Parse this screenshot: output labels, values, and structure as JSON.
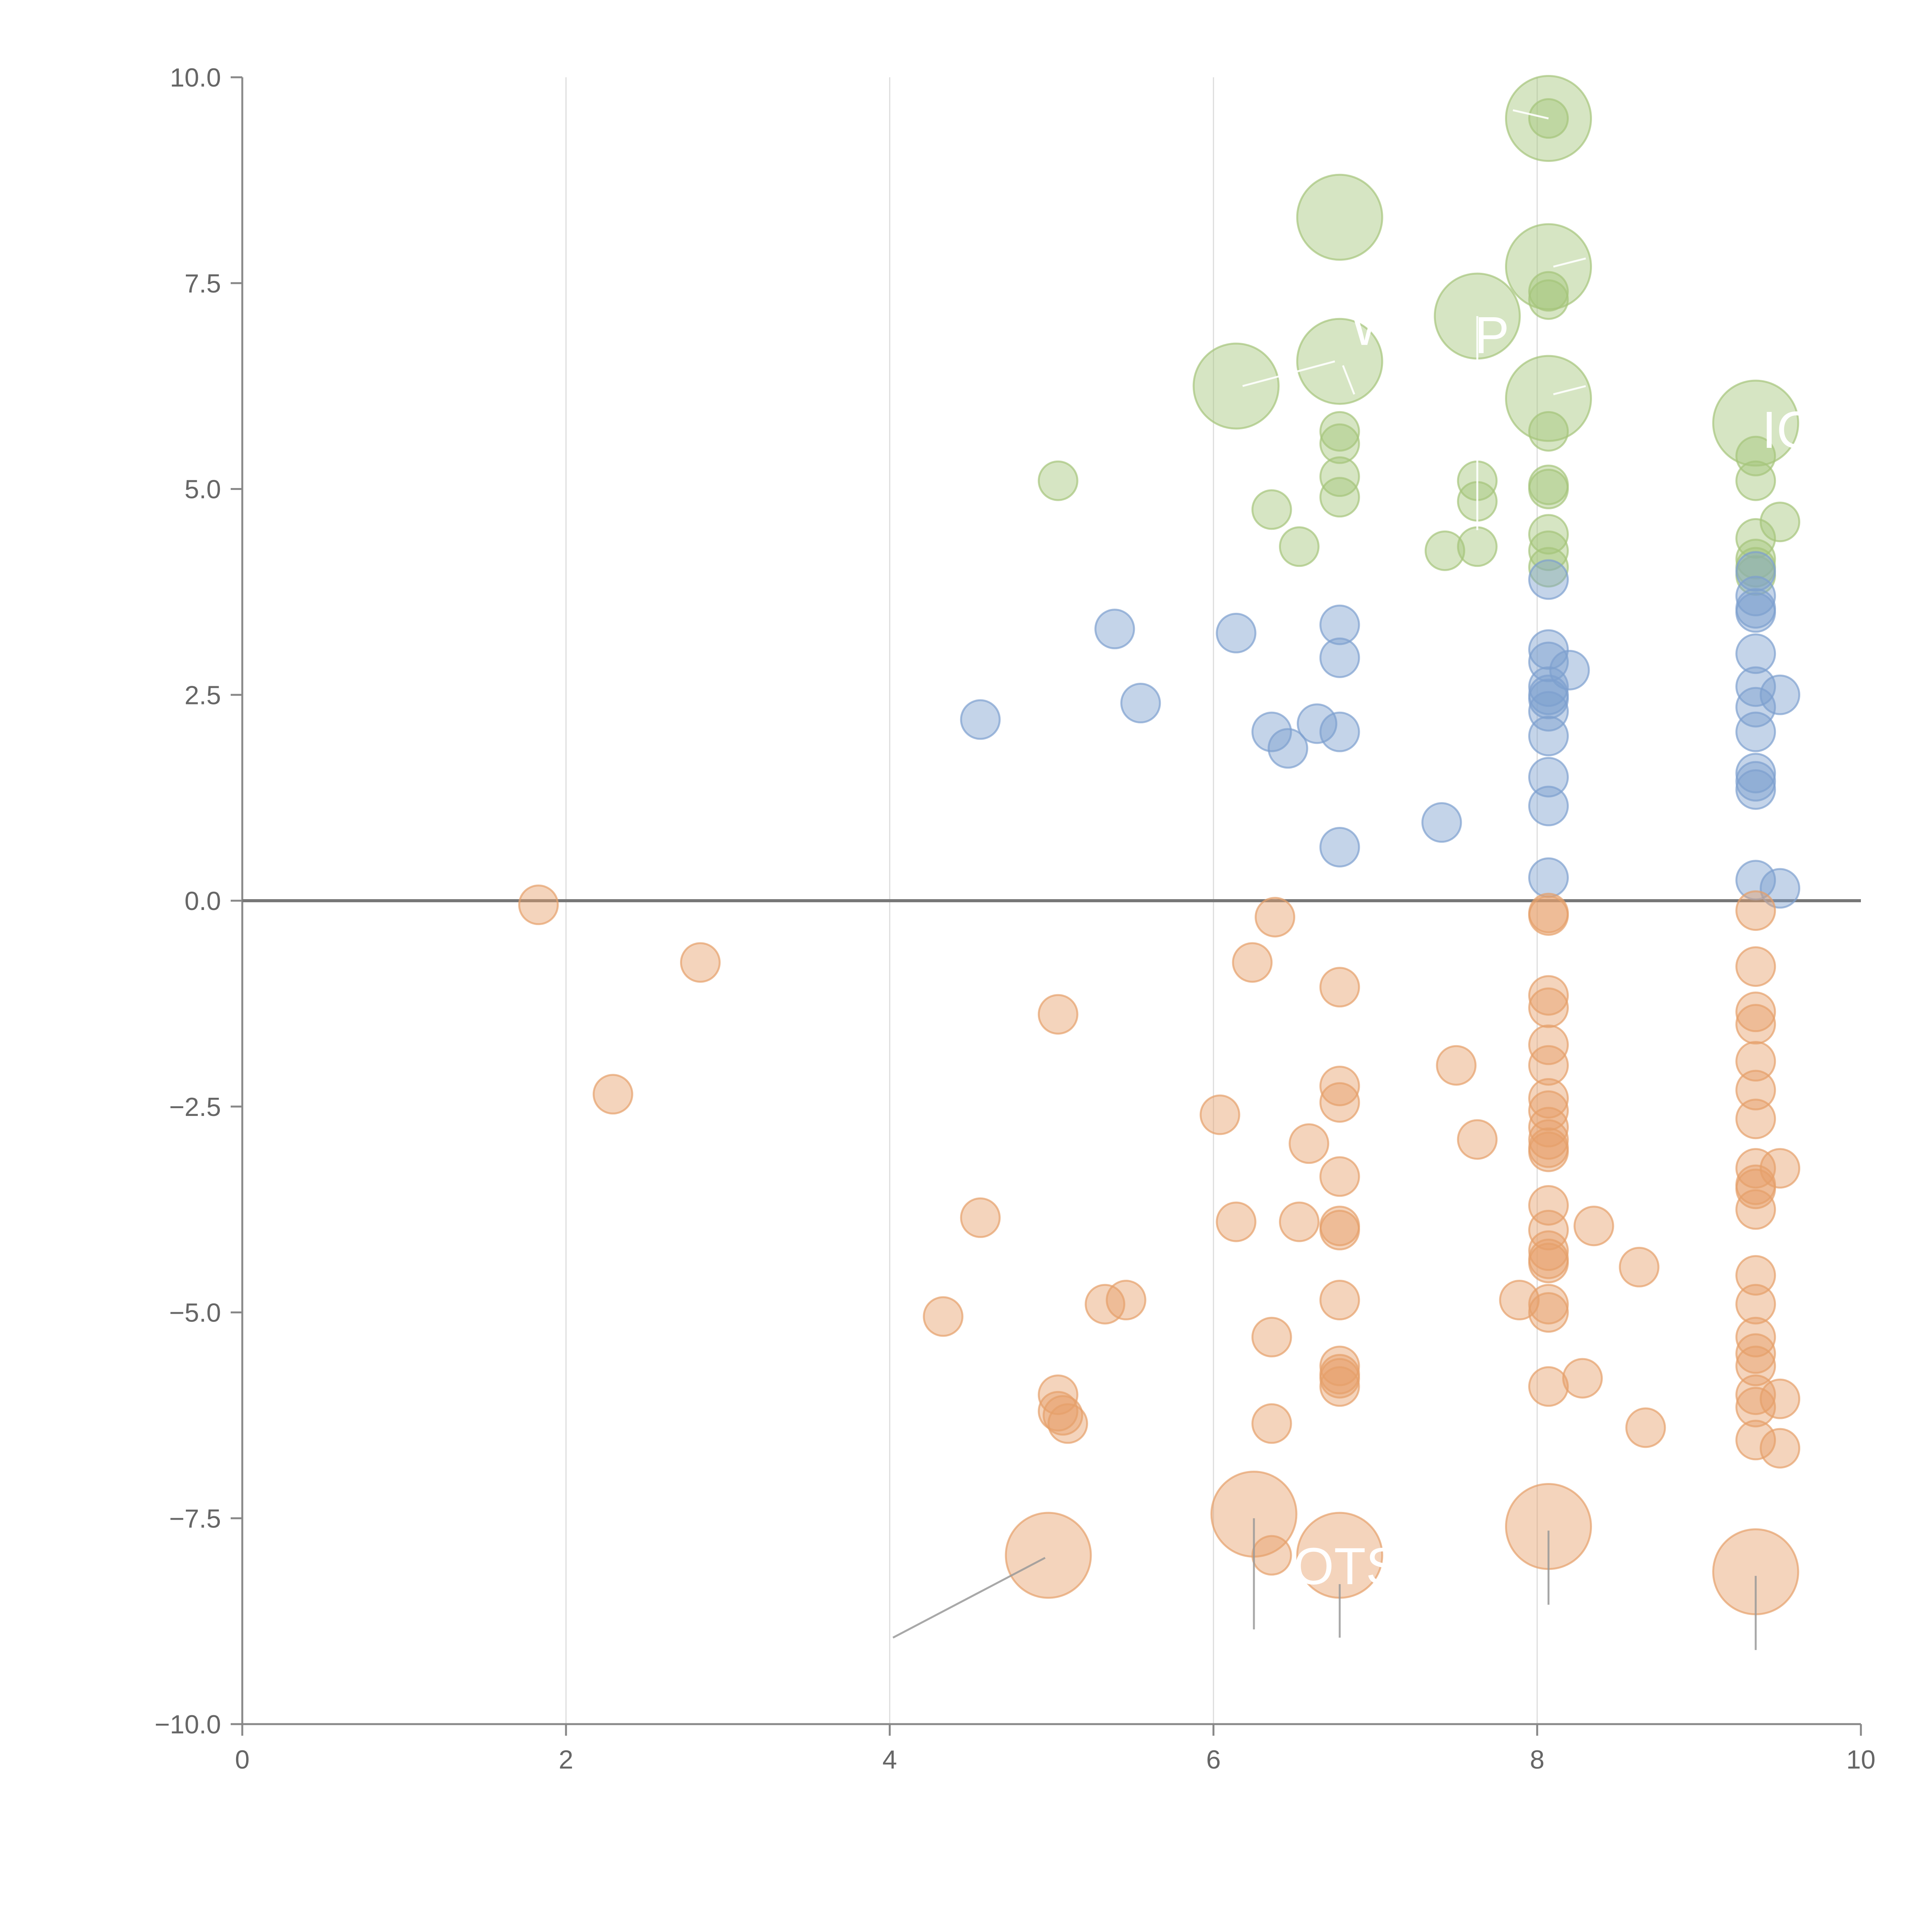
{
  "chart_data": {
    "type": "scatter",
    "title": "",
    "xlabel": "",
    "ylabel": "",
    "xlim": [
      0,
      10
    ],
    "ylim": [
      -10,
      10
    ],
    "xticks": [
      "0",
      "2",
      "4",
      "6",
      "8",
      "10"
    ],
    "yticks": [
      "10.0",
      "7.5",
      "5.0",
      "2.5",
      "0.0",
      "−2.5",
      "−5.0",
      "−7.5",
      "−10.0"
    ],
    "grid": "vertical",
    "zero_line": true,
    "series": [
      {
        "name": "green",
        "color": "#a5c57a",
        "points": [
          [
            5.04,
            5.1,
            0
          ],
          [
            6.36,
            4.75,
            0
          ],
          [
            6.53,
            4.3,
            0
          ],
          [
            6.78,
            5.7,
            0
          ],
          [
            6.78,
            5.55,
            0
          ],
          [
            6.78,
            5.15,
            0
          ],
          [
            6.78,
            4.9,
            0
          ],
          [
            7.43,
            4.25,
            0
          ],
          [
            7.63,
            5.1,
            0
          ],
          [
            7.63,
            4.85,
            0
          ],
          [
            7.63,
            4.3,
            0
          ],
          [
            8.07,
            5.7,
            0
          ],
          [
            8.07,
            5.05,
            0
          ],
          [
            8.07,
            5.0,
            0
          ],
          [
            8.07,
            4.45,
            0
          ],
          [
            8.07,
            4.25,
            0
          ],
          [
            8.07,
            4.05,
            0
          ],
          [
            8.07,
            7.3,
            0
          ],
          [
            8.07,
            7.4,
            0
          ],
          [
            8.07,
            9.5,
            0
          ],
          [
            9.35,
            5.1,
            0
          ],
          [
            9.35,
            4.4,
            0
          ],
          [
            9.35,
            4.15,
            0
          ],
          [
            9.35,
            4.05,
            0
          ],
          [
            9.35,
            3.95,
            0
          ],
          [
            9.5,
            4.6,
            0
          ],
          [
            9.35,
            5.4,
            0
          ],
          [
            6.78,
            8.3,
            1
          ],
          [
            8.07,
            9.5,
            1
          ],
          [
            8.07,
            7.7,
            1
          ],
          [
            7.63,
            7.1,
            1
          ],
          [
            6.78,
            6.55,
            1
          ],
          [
            6.14,
            6.25,
            1
          ],
          [
            8.07,
            6.1,
            1
          ],
          [
            9.35,
            5.8,
            1
          ]
        ]
      },
      {
        "name": "blue",
        "color": "#7d9fcf",
        "points": [
          [
            4.56,
            2.2,
            0
          ],
          [
            5.39,
            3.3,
            0
          ],
          [
            5.55,
            2.4,
            0
          ],
          [
            6.14,
            3.25,
            0
          ],
          [
            6.36,
            2.05,
            0
          ],
          [
            6.46,
            1.85,
            0
          ],
          [
            6.64,
            2.15,
            0
          ],
          [
            6.78,
            2.05,
            0
          ],
          [
            6.78,
            3.35,
            0
          ],
          [
            6.78,
            2.95,
            0
          ],
          [
            6.78,
            0.65,
            0
          ],
          [
            7.41,
            0.95,
            0
          ],
          [
            8.07,
            3.9,
            0
          ],
          [
            8.07,
            3.05,
            0
          ],
          [
            8.07,
            2.9,
            0
          ],
          [
            8.2,
            2.8,
            0
          ],
          [
            8.07,
            2.6,
            0
          ],
          [
            8.07,
            2.5,
            0
          ],
          [
            8.07,
            2.45,
            0
          ],
          [
            8.07,
            2.3,
            0
          ],
          [
            8.07,
            2.0,
            0
          ],
          [
            8.07,
            1.5,
            0
          ],
          [
            8.07,
            1.15,
            0
          ],
          [
            8.07,
            0.28,
            0
          ],
          [
            9.35,
            4.0,
            0
          ],
          [
            9.35,
            3.7,
            0
          ],
          [
            9.35,
            3.55,
            0
          ],
          [
            9.35,
            3.5,
            0
          ],
          [
            9.35,
            3.0,
            0
          ],
          [
            9.35,
            2.6,
            0
          ],
          [
            9.5,
            2.5,
            0
          ],
          [
            9.35,
            2.35,
            0
          ],
          [
            9.35,
            2.05,
            0
          ],
          [
            9.35,
            1.55,
            0
          ],
          [
            9.35,
            1.45,
            0
          ],
          [
            9.35,
            1.35,
            0
          ],
          [
            9.35,
            0.25,
            0
          ],
          [
            9.5,
            0.15,
            0
          ]
        ]
      },
      {
        "name": "orange",
        "color": "#e6a06a",
        "points": [
          [
            1.83,
            -0.05,
            0
          ],
          [
            2.29,
            -2.35,
            0
          ],
          [
            2.83,
            -0.75,
            0
          ],
          [
            4.33,
            -5.05,
            0
          ],
          [
            4.56,
            -3.85,
            0
          ],
          [
            5.04,
            -1.38,
            0
          ],
          [
            5.04,
            -6.0,
            0
          ],
          [
            5.04,
            -6.2,
            0
          ],
          [
            5.07,
            -6.25,
            0
          ],
          [
            5.1,
            -6.35,
            0
          ],
          [
            5.33,
            -4.9,
            0
          ],
          [
            5.46,
            -4.85,
            0
          ],
          [
            6.04,
            -2.6,
            0
          ],
          [
            6.14,
            -3.9,
            0
          ],
          [
            6.24,
            -0.75,
            0
          ],
          [
            6.36,
            -5.3,
            0
          ],
          [
            6.36,
            -6.35,
            0
          ],
          [
            6.36,
            -7.95,
            0
          ],
          [
            6.38,
            -0.2,
            0
          ],
          [
            6.53,
            -3.9,
            0
          ],
          [
            6.59,
            -2.95,
            0
          ],
          [
            6.78,
            -1.05,
            0
          ],
          [
            6.78,
            -2.25,
            0
          ],
          [
            6.78,
            -2.45,
            0
          ],
          [
            6.78,
            -3.35,
            0
          ],
          [
            6.78,
            -3.95,
            0
          ],
          [
            6.78,
            -4.0,
            0
          ],
          [
            6.78,
            -4.85,
            0
          ],
          [
            6.78,
            -5.65,
            0
          ],
          [
            6.78,
            -5.75,
            0
          ],
          [
            6.78,
            -5.8,
            0
          ],
          [
            6.78,
            -5.9,
            0
          ],
          [
            7.5,
            -2.0,
            0
          ],
          [
            7.63,
            -2.9,
            0
          ],
          [
            7.89,
            -4.85,
            0
          ],
          [
            8.07,
            -0.15,
            0
          ],
          [
            8.07,
            -0.18,
            0
          ],
          [
            8.07,
            -1.15,
            0
          ],
          [
            8.07,
            -1.3,
            0
          ],
          [
            8.07,
            -1.75,
            0
          ],
          [
            8.07,
            -2.0,
            0
          ],
          [
            8.07,
            -2.4,
            0
          ],
          [
            8.07,
            -2.55,
            0
          ],
          [
            8.07,
            -2.75,
            0
          ],
          [
            8.07,
            -2.9,
            0
          ],
          [
            8.07,
            -3.0,
            0
          ],
          [
            8.07,
            -3.05,
            0
          ],
          [
            8.07,
            -3.7,
            0
          ],
          [
            8.07,
            -4.0,
            0
          ],
          [
            8.07,
            -4.25,
            0
          ],
          [
            8.07,
            -4.35,
            0
          ],
          [
            8.07,
            -4.4,
            0
          ],
          [
            8.07,
            -4.9,
            0
          ],
          [
            8.07,
            -5.0,
            0
          ],
          [
            8.07,
            -5.9,
            0
          ],
          [
            8.28,
            -5.8,
            0
          ],
          [
            8.35,
            -3.95,
            0
          ],
          [
            8.63,
            -4.45,
            0
          ],
          [
            8.67,
            -6.4,
            0
          ],
          [
            9.35,
            -0.12,
            0
          ],
          [
            9.35,
            -0.8,
            0
          ],
          [
            9.35,
            -1.35,
            0
          ],
          [
            9.35,
            -1.5,
            0
          ],
          [
            9.35,
            -1.95,
            0
          ],
          [
            9.35,
            -2.3,
            0
          ],
          [
            9.35,
            -2.65,
            0
          ],
          [
            9.35,
            -3.25,
            0
          ],
          [
            9.35,
            -3.45,
            0
          ],
          [
            9.35,
            -3.5,
            0
          ],
          [
            9.35,
            -3.75,
            0
          ],
          [
            9.35,
            -4.55,
            0
          ],
          [
            9.35,
            -4.9,
            0
          ],
          [
            9.35,
            -5.3,
            0
          ],
          [
            9.35,
            -5.5,
            0
          ],
          [
            9.35,
            -5.65,
            0
          ],
          [
            9.35,
            -6.0,
            0
          ],
          [
            9.35,
            -6.15,
            0
          ],
          [
            9.35,
            -6.55,
            0
          ],
          [
            9.5,
            -3.25,
            0
          ],
          [
            9.5,
            -6.05,
            0
          ],
          [
            9.5,
            -6.65,
            0
          ],
          [
            4.98,
            -7.95,
            1
          ],
          [
            6.25,
            -7.45,
            1
          ],
          [
            6.78,
            -7.95,
            1
          ],
          [
            8.07,
            -7.6,
            1
          ],
          [
            9.35,
            -8.15,
            1
          ]
        ]
      }
    ],
    "labels": [
      {
        "text": "W",
        "x": 7.0,
        "y": 6.75
      },
      {
        "text": "P",
        "x": 7.72,
        "y": 6.65
      },
      {
        "text": "IC",
        "x": 9.55,
        "y": 5.5
      },
      {
        "text": "OTSI",
        "x": 6.87,
        "y": -8.3
      }
    ],
    "leader_lines": [
      [
        4.96,
        -7.98,
        4.02,
        -8.95
      ],
      [
        6.25,
        -7.5,
        6.25,
        -8.85
      ],
      [
        6.78,
        -8.3,
        6.78,
        -8.95
      ],
      [
        8.07,
        -7.65,
        8.07,
        -8.55
      ],
      [
        9.35,
        -8.2,
        9.35,
        -9.1
      ],
      [
        6.18,
        6.25,
        6.75,
        6.55
      ],
      [
        6.8,
        6.5,
        6.87,
        6.15
      ],
      [
        8.1,
        6.15,
        8.3,
        6.25
      ],
      [
        8.1,
        7.7,
        8.3,
        7.8
      ],
      [
        8.07,
        9.5,
        7.85,
        9.6
      ],
      [
        7.63,
        7.1,
        7.63,
        4.5
      ]
    ]
  }
}
